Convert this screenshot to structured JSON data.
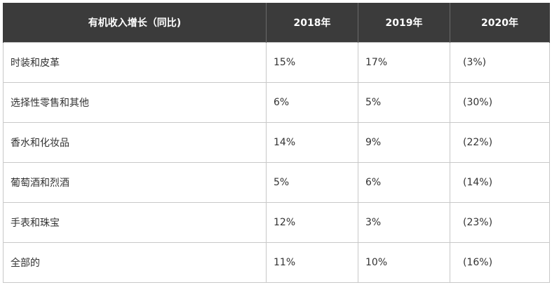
{
  "table": {
    "headers": [
      "有机收入增长（同比)",
      "2018年",
      "2019年",
      "2020年"
    ],
    "rows": [
      [
        "时装和皮革",
        "15%",
        "17%",
        "(3%)"
      ],
      [
        "选择性零售和其他",
        "6%",
        "5%",
        "(30%)"
      ],
      [
        "香水和化妆品",
        "14%",
        "9%",
        "(22%)"
      ],
      [
        "葡萄酒和烈酒",
        "5%",
        "6%",
        "(14%)"
      ],
      [
        "手表和珠宝",
        "12%",
        "3%",
        "(23%)"
      ],
      [
        "全部的",
        "11%",
        "10%",
        "(16%)"
      ]
    ]
  }
}
